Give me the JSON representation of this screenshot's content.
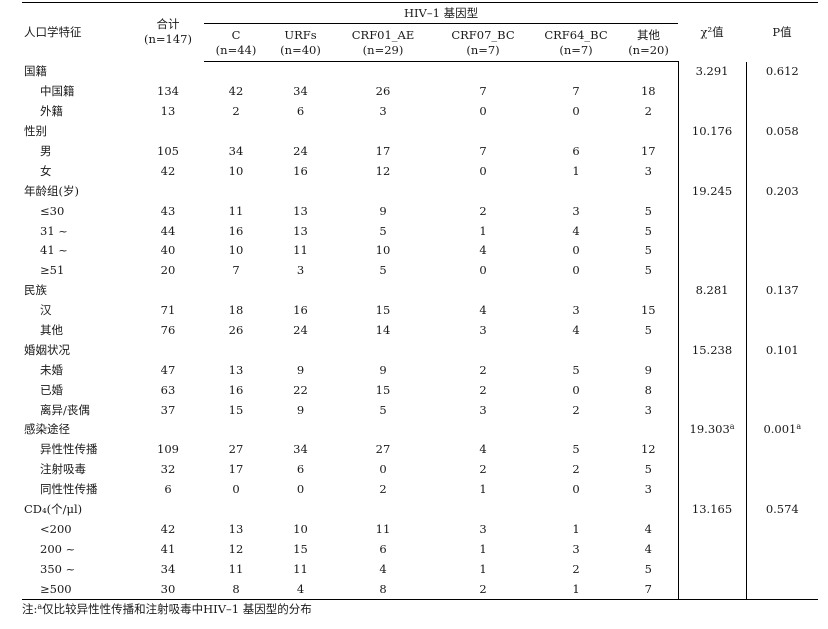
{
  "header": {
    "demographic": "人口学特征",
    "total": "合计",
    "total_n": "(n=147)",
    "group": "HIV–1 基因型",
    "chi": "χ²值",
    "p": "P值",
    "subtypes": [
      {
        "label": "C",
        "n": "(n=44)"
      },
      {
        "label": "URFs",
        "n": "(n=40)"
      },
      {
        "label": "CRF01_AE",
        "n": "(n=29)"
      },
      {
        "label": "CRF07_BC",
        "n": "(n=7)"
      },
      {
        "label": "CRF64_BC",
        "n": "(n=7)"
      },
      {
        "label": "其他",
        "n": "(n=20)"
      }
    ]
  },
  "rows": [
    {
      "label": "国籍",
      "type": "cat",
      "chi": "3.291",
      "p": "0.612"
    },
    {
      "label": "中国籍",
      "type": "sub",
      "vals": [
        "134",
        "42",
        "34",
        "26",
        "7",
        "7",
        "18"
      ]
    },
    {
      "label": "外籍",
      "type": "sub",
      "vals": [
        "13",
        "2",
        "6",
        "3",
        "0",
        "0",
        "2"
      ]
    },
    {
      "label": "性别",
      "type": "cat",
      "chi": "10.176",
      "p": "0.058"
    },
    {
      "label": "男",
      "type": "sub",
      "vals": [
        "105",
        "34",
        "24",
        "17",
        "7",
        "6",
        "17"
      ]
    },
    {
      "label": "女",
      "type": "sub",
      "vals": [
        "42",
        "10",
        "16",
        "12",
        "0",
        "1",
        "3"
      ]
    },
    {
      "label": "年龄组(岁)",
      "type": "cat",
      "chi": "19.245",
      "p": "0.203"
    },
    {
      "label": "≤30",
      "type": "sub",
      "vals": [
        "43",
        "11",
        "13",
        "9",
        "2",
        "3",
        "5"
      ]
    },
    {
      "label": "31 ~",
      "type": "sub",
      "vals": [
        "44",
        "16",
        "13",
        "5",
        "1",
        "4",
        "5"
      ]
    },
    {
      "label": "41 ~",
      "type": "sub",
      "vals": [
        "40",
        "10",
        "11",
        "10",
        "4",
        "0",
        "5"
      ]
    },
    {
      "label": "≥51",
      "type": "sub",
      "vals": [
        "20",
        "7",
        "3",
        "5",
        "0",
        "0",
        "5"
      ]
    },
    {
      "label": "民族",
      "type": "cat",
      "chi": "8.281",
      "p": "0.137"
    },
    {
      "label": "汉",
      "type": "sub",
      "vals": [
        "71",
        "18",
        "16",
        "15",
        "4",
        "3",
        "15"
      ]
    },
    {
      "label": "其他",
      "type": "sub",
      "vals": [
        "76",
        "26",
        "24",
        "14",
        "3",
        "4",
        "5"
      ]
    },
    {
      "label": "婚姻状况",
      "type": "cat",
      "chi": "15.238",
      "p": "0.101"
    },
    {
      "label": "未婚",
      "type": "sub",
      "vals": [
        "47",
        "13",
        "9",
        "9",
        "2",
        "5",
        "9"
      ]
    },
    {
      "label": "已婚",
      "type": "sub",
      "vals": [
        "63",
        "16",
        "22",
        "15",
        "2",
        "0",
        "8"
      ]
    },
    {
      "label": "离异/丧偶",
      "type": "sub",
      "vals": [
        "37",
        "15",
        "9",
        "5",
        "3",
        "2",
        "3"
      ]
    },
    {
      "label": "感染途径",
      "type": "cat",
      "chi": "19.303",
      "chi_sup": "a",
      "p": "0.001",
      "p_sup": "a"
    },
    {
      "label": "异性性传播",
      "type": "sub",
      "vals": [
        "109",
        "27",
        "34",
        "27",
        "4",
        "5",
        "12"
      ]
    },
    {
      "label": "注射吸毒",
      "type": "sub",
      "vals": [
        "32",
        "17",
        "6",
        "0",
        "2",
        "2",
        "5"
      ]
    },
    {
      "label": "同性性传播",
      "type": "sub",
      "vals": [
        "6",
        "0",
        "0",
        "2",
        "1",
        "0",
        "3"
      ]
    },
    {
      "label": "CD₄(个/μl)",
      "type": "cat",
      "chi": "13.165",
      "p": "0.574"
    },
    {
      "label": "<200",
      "type": "sub",
      "vals": [
        "42",
        "13",
        "10",
        "11",
        "3",
        "1",
        "4"
      ]
    },
    {
      "label": "200 ~",
      "type": "sub",
      "vals": [
        "41",
        "12",
        "15",
        "6",
        "1",
        "3",
        "4"
      ]
    },
    {
      "label": "350 ~",
      "type": "sub",
      "vals": [
        "34",
        "11",
        "11",
        "4",
        "1",
        "2",
        "5"
      ]
    },
    {
      "label": "≥500",
      "type": "sub",
      "vals": [
        "30",
        "8",
        "4",
        "8",
        "2",
        "1",
        "7"
      ]
    }
  ],
  "note": {
    "prefix": "注:",
    "sup": "a",
    "text": "仅比较异性性传播和注射吸毒中HIV–1 基因型的分布"
  }
}
